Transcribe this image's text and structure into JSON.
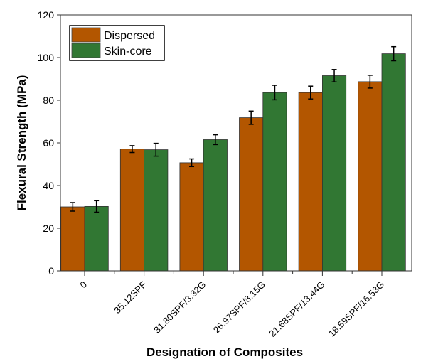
{
  "chart_data": {
    "type": "bar",
    "title": "",
    "xlabel": "Designation of Composites",
    "ylabel": "Flexural Strength (MPa)",
    "ylim": [
      0,
      120
    ],
    "yticks": [
      0,
      20,
      40,
      60,
      80,
      100,
      120
    ],
    "categories": [
      "0",
      "35.12SPF",
      "31.80SPF/3.32G",
      "26.97SPF/8.15G",
      "21.68SPF/13.44G",
      "18.59SPF/16.53G"
    ],
    "series": [
      {
        "name": "Dispersed",
        "color": "#b35600",
        "values": [
          30.0,
          57.1,
          50.7,
          71.8,
          83.6,
          88.7
        ],
        "errors": [
          2.0,
          1.6,
          1.8,
          3.1,
          3.0,
          3.0
        ]
      },
      {
        "name": "Skin-core",
        "color": "#317733",
        "values": [
          30.2,
          56.8,
          61.5,
          83.6,
          91.5,
          101.8
        ],
        "errors": [
          2.7,
          3.0,
          2.3,
          3.4,
          2.9,
          3.3
        ]
      }
    ],
    "legend_position": "top-left",
    "grid": false
  }
}
